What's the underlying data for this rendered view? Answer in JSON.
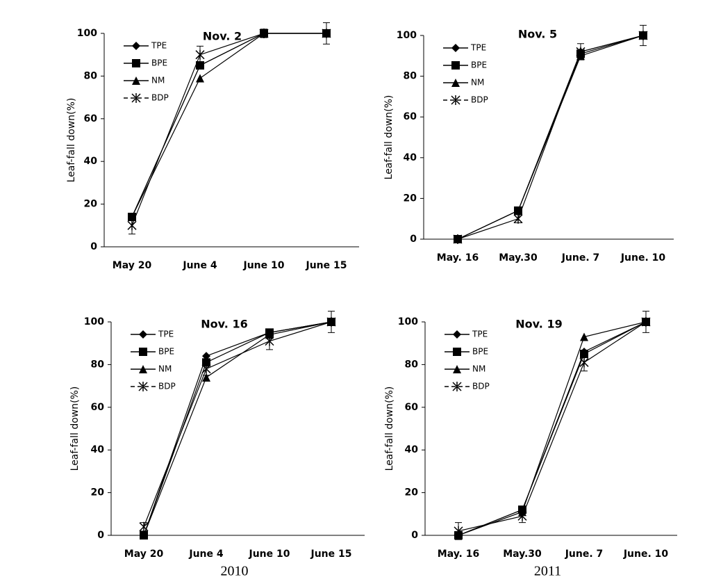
{
  "chart_data": [
    {
      "type": "line",
      "title": "Nov. 2",
      "ylabel": "Leaf-fall down(%)",
      "categories": [
        "May 20",
        "June 4",
        "June 10",
        "June 15"
      ],
      "ylim": [
        0,
        100
      ],
      "yticks": [
        0,
        20,
        40,
        60,
        80,
        100
      ],
      "legend": "upper left",
      "series": [
        {
          "name": "TPE",
          "color": "#000000",
          "marker": "diamond",
          "values": [
            14,
            85,
            100,
            100
          ]
        },
        {
          "name": "BPE",
          "color": "#000000",
          "marker": "square",
          "values": [
            14,
            85,
            100,
            100
          ]
        },
        {
          "name": "NM",
          "color": "#000000",
          "marker": "triangle",
          "values": [
            14,
            79,
            100,
            100
          ]
        },
        {
          "name": "BDP",
          "color": "#000000",
          "marker": "asterisk",
          "values": [
            10,
            90,
            100,
            100
          ],
          "errors": [
            4,
            4,
            2,
            5
          ]
        }
      ]
    },
    {
      "type": "line",
      "title": "Nov. 5",
      "ylabel": "Leaf-fall down(%)",
      "categories": [
        "May. 16",
        "May.30",
        "June. 7",
        "June. 10"
      ],
      "ylim": [
        0,
        100
      ],
      "yticks": [
        0,
        20,
        40,
        60,
        80,
        100
      ],
      "legend": "upper left",
      "series": [
        {
          "name": "TPE",
          "color": "#000000",
          "marker": "diamond",
          "values": [
            0,
            14,
            92,
            100
          ]
        },
        {
          "name": "BPE",
          "color": "#000000",
          "marker": "square",
          "values": [
            0,
            14,
            91,
            100
          ]
        },
        {
          "name": "NM",
          "color": "#000000",
          "marker": "triangle",
          "values": [
            0,
            14,
            90,
            100
          ]
        },
        {
          "name": "BDP",
          "color": "#000000",
          "marker": "asterisk",
          "values": [
            0,
            10,
            92,
            100
          ],
          "errors": [
            0,
            2,
            4,
            5
          ]
        }
      ]
    },
    {
      "type": "line",
      "title": "Nov. 16",
      "ylabel": "Leaf-fall down(%)",
      "caption": "2010",
      "categories": [
        "May 20",
        "June 4",
        "June 10",
        "June 15"
      ],
      "ylim": [
        0,
        100
      ],
      "yticks": [
        0,
        20,
        40,
        60,
        80,
        100
      ],
      "legend": "upper left",
      "series": [
        {
          "name": "TPE",
          "color": "#000000",
          "marker": "diamond",
          "values": [
            0,
            84,
            95,
            100
          ]
        },
        {
          "name": "BPE",
          "color": "#000000",
          "marker": "square",
          "values": [
            0,
            81,
            95,
            100
          ]
        },
        {
          "name": "NM",
          "color": "#000000",
          "marker": "triangle",
          "values": [
            0,
            74,
            94,
            100
          ]
        },
        {
          "name": "BDP",
          "color": "#000000",
          "marker": "asterisk",
          "values": [
            4,
            78,
            91,
            100
          ],
          "errors": [
            2,
            3,
            4,
            5
          ]
        }
      ]
    },
    {
      "type": "line",
      "title": "Nov. 19",
      "ylabel": "Leaf-fall down(%)",
      "caption": "2011",
      "categories": [
        "May. 16",
        "May.30",
        "June. 7",
        "June. 10"
      ],
      "ylim": [
        0,
        100
      ],
      "yticks": [
        0,
        20,
        40,
        60,
        80,
        100
      ],
      "legend": "upper left",
      "series": [
        {
          "name": "TPE",
          "color": "#000000",
          "marker": "diamond",
          "values": [
            0,
            12,
            86,
            100
          ]
        },
        {
          "name": "BPE",
          "color": "#000000",
          "marker": "square",
          "values": [
            0,
            12,
            85,
            100
          ]
        },
        {
          "name": "NM",
          "color": "#000000",
          "marker": "triangle",
          "values": [
            0,
            11,
            93,
            100
          ]
        },
        {
          "name": "BDP",
          "color": "#000000",
          "marker": "asterisk",
          "values": [
            2,
            9,
            81,
            100
          ],
          "errors": [
            4,
            3,
            4,
            5
          ]
        }
      ]
    }
  ]
}
